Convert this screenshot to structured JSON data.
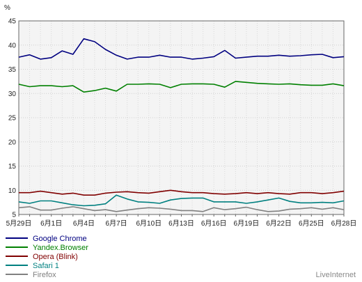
{
  "chart_data": {
    "type": "line",
    "ylabel": "%",
    "ylim": [
      5,
      45
    ],
    "yticks": [
      5,
      10,
      15,
      20,
      25,
      30,
      35,
      40,
      45
    ],
    "grid": true,
    "legend_position": "bottom-left",
    "categories": [
      "5月29日",
      "5月30日",
      "5月31日",
      "6月1日",
      "6月2日",
      "6月3日",
      "6月4日",
      "6月5日",
      "6月6日",
      "6月7日",
      "6月8日",
      "6月9日",
      "6月10日",
      "6月11日",
      "6月12日",
      "6月13日",
      "6月14日",
      "6月15日",
      "6月16日",
      "6月17日",
      "6月18日",
      "6月19日",
      "6月20日",
      "6月21日",
      "6月22日",
      "6月23日",
      "6月24日",
      "6月25日",
      "6月26日",
      "6月27日",
      "6月28日"
    ],
    "x_tick_labels": [
      "5月29日",
      "6月1日",
      "6月4日",
      "6月7日",
      "6月10日",
      "6月13日",
      "6月16日",
      "6月19日",
      "6月22日",
      "6月25日",
      "6月28日"
    ],
    "series": [
      {
        "name": "Google Chrome",
        "color": "#000080",
        "values": [
          37.5,
          38.0,
          37.1,
          37.4,
          38.8,
          38.1,
          41.3,
          40.7,
          39.1,
          37.9,
          37.1,
          37.5,
          37.5,
          37.9,
          37.5,
          37.5,
          37.1,
          37.3,
          37.6,
          38.9,
          37.3,
          37.5,
          37.7,
          37.7,
          37.9,
          37.7,
          37.8,
          38.0,
          38.1,
          37.4,
          37.6
        ]
      },
      {
        "name": "Yandex.Browser",
        "color": "#008000",
        "values": [
          31.9,
          31.4,
          31.6,
          31.6,
          31.4,
          31.6,
          30.3,
          30.6,
          31.1,
          30.5,
          31.9,
          31.9,
          32.0,
          31.9,
          31.2,
          31.9,
          32.0,
          32.0,
          31.9,
          31.3,
          32.5,
          32.3,
          32.1,
          32.0,
          31.9,
          32.0,
          31.8,
          31.7,
          31.7,
          32.0,
          31.6
        ]
      },
      {
        "name": "Opera (Blink)",
        "color": "#800000",
        "values": [
          9.5,
          9.5,
          9.8,
          9.5,
          9.2,
          9.4,
          9.0,
          9.0,
          9.4,
          9.6,
          9.7,
          9.5,
          9.4,
          9.7,
          10.0,
          9.7,
          9.5,
          9.5,
          9.3,
          9.2,
          9.3,
          9.5,
          9.3,
          9.5,
          9.3,
          9.2,
          9.5,
          9.5,
          9.3,
          9.5,
          9.8
        ]
      },
      {
        "name": "Safari 1",
        "color": "#008080",
        "values": [
          7.6,
          7.3,
          7.8,
          7.8,
          7.4,
          7.0,
          6.8,
          6.9,
          7.2,
          9.0,
          8.2,
          7.6,
          7.5,
          7.3,
          8.0,
          8.3,
          8.4,
          8.4,
          7.6,
          7.6,
          7.6,
          7.3,
          7.6,
          8.0,
          8.4,
          7.7,
          7.4,
          7.4,
          7.5,
          7.4,
          7.8
        ]
      },
      {
        "name": "Firefox",
        "color": "#808080",
        "values": [
          6.4,
          6.6,
          5.9,
          5.9,
          6.3,
          6.6,
          6.2,
          5.8,
          6.0,
          5.6,
          5.9,
          6.2,
          6.4,
          6.3,
          6.1,
          5.8,
          5.8,
          5.6,
          6.4,
          6.0,
          6.2,
          6.5,
          6.0,
          5.6,
          5.7,
          6.1,
          6.2,
          6.4,
          6.1,
          6.4,
          6.0
        ]
      }
    ],
    "watermark": "LiveInternet"
  }
}
